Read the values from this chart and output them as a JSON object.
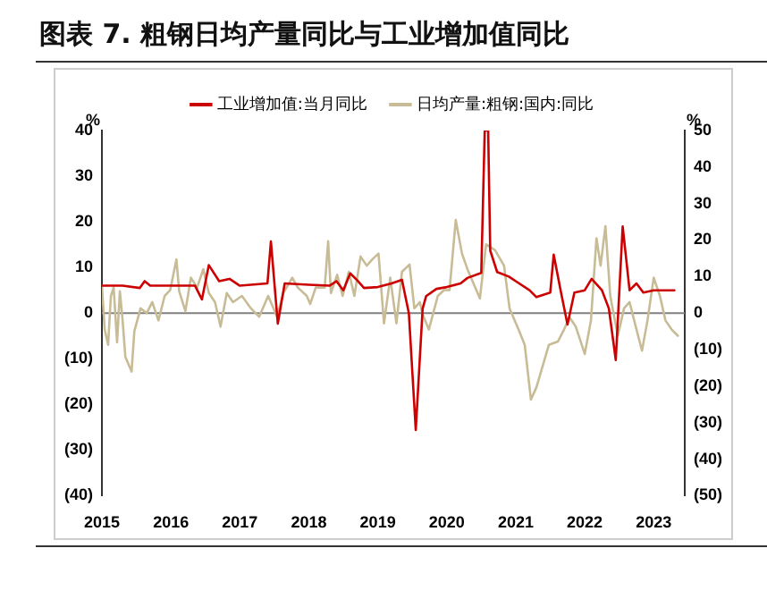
{
  "chart_data": {
    "type": "line",
    "title": "图表 7. 粗钢日均产量同比与工业增加值同比",
    "ylabel": "%",
    "y2label": "%",
    "xlim": [
      2015,
      2023.45
    ],
    "xticks": [
      2015,
      2016,
      2017,
      2018,
      2019,
      2020,
      2021,
      2022,
      2023
    ],
    "ylim": [
      -40,
      40
    ],
    "yticks": [
      {
        "value": -40,
        "label": "(40)"
      },
      {
        "value": -30,
        "label": "(30)"
      },
      {
        "value": -20,
        "label": "(20)"
      },
      {
        "value": -10,
        "label": "(10)"
      },
      0,
      10,
      20,
      30,
      40
    ],
    "y2lim": [
      -50,
      50
    ],
    "y2ticks": [
      {
        "value": -50,
        "label": "(50)"
      },
      {
        "value": -40,
        "label": "(40)"
      },
      {
        "value": -30,
        "label": "(30)"
      },
      {
        "value": -20,
        "label": "(20)"
      },
      {
        "value": -10,
        "label": "(10)"
      },
      0,
      10,
      20,
      30,
      40,
      50
    ],
    "grid": false,
    "legend": "top",
    "marker": "none",
    "line_style": "solid",
    "ref_lines": [
      {
        "axis": "y",
        "value": 0,
        "color": "#808080"
      }
    ],
    "series": [
      {
        "name": "工业增加值:当月同比",
        "color": "#cc0000",
        "axis": "y",
        "x": [
          2015.0,
          2015.3,
          2015.55,
          2015.62,
          2015.7,
          2016.0,
          2016.35,
          2016.45,
          2016.55,
          2016.7,
          2016.85,
          2017.0,
          2017.4,
          2017.45,
          2017.55,
          2017.65,
          2018.0,
          2018.3,
          2018.4,
          2018.5,
          2018.6,
          2018.7,
          2018.8,
          2019.0,
          2019.2,
          2019.35,
          2019.45,
          2019.55,
          2019.65,
          2019.7,
          2019.85,
          2020.0,
          2020.2,
          2020.3,
          2020.5,
          2020.55,
          2020.6,
          2020.63,
          2020.73,
          2020.9,
          2021.0,
          2021.2,
          2021.3,
          2021.5,
          2021.55,
          2021.65,
          2021.75,
          2021.85,
          2022.0,
          2022.1,
          2022.25,
          2022.35,
          2022.45,
          2022.55,
          2022.65,
          2022.75,
          2022.85,
          2023.0,
          2023.3
        ],
        "values": [
          6,
          6,
          5.5,
          7,
          6,
          6,
          6,
          3,
          10.5,
          7,
          7.5,
          6,
          6.5,
          15.7,
          -2.3,
          6.5,
          6.2,
          6,
          7,
          5,
          8.7,
          7.2,
          5.5,
          5.7,
          6.5,
          7.3,
          0,
          -25.6,
          1,
          3.7,
          5.3,
          5.7,
          6.5,
          7.7,
          8.8,
          40,
          40,
          13.7,
          9,
          8,
          7,
          5,
          3.5,
          4.5,
          12.8,
          5,
          -2.5,
          4.5,
          5,
          7.5,
          5,
          1,
          -10.3,
          19,
          5,
          6.5,
          4.5,
          5,
          5
        ]
      },
      {
        "name": "日均产量:粗钢:国内:同比",
        "color": "#c8bc96",
        "axis": "y2",
        "x": [
          2015.0,
          2015.04,
          2015.09,
          2015.13,
          2015.17,
          2015.22,
          2015.26,
          2015.3,
          2015.34,
          2015.43,
          2015.47,
          2015.56,
          2015.65,
          2015.73,
          2015.82,
          2015.91,
          2015.99,
          2016.08,
          2016.12,
          2016.21,
          2016.29,
          2016.38,
          2016.47,
          2016.55,
          2016.64,
          2016.72,
          2016.81,
          2016.9,
          2017.03,
          2017.16,
          2017.28,
          2017.41,
          2017.54,
          2017.63,
          2017.76,
          2017.84,
          2017.97,
          2018.02,
          2018.1,
          2018.23,
          2018.28,
          2018.32,
          2018.41,
          2018.49,
          2018.58,
          2018.66,
          2018.75,
          2018.84,
          2018.92,
          2019.01,
          2019.09,
          2019.18,
          2019.27,
          2019.35,
          2019.46,
          2019.53,
          2019.61,
          2019.65,
          2019.74,
          2019.87,
          2019.96,
          2020.04,
          2020.13,
          2020.22,
          2020.3,
          2020.39,
          2020.48,
          2020.57,
          2020.7,
          2020.83,
          2020.91,
          2021.04,
          2021.13,
          2021.22,
          2021.3,
          2021.39,
          2021.48,
          2021.61,
          2021.7,
          2021.78,
          2021.87,
          2022.0,
          2022.09,
          2022.17,
          2022.23,
          2022.3,
          2022.37,
          2022.48,
          2022.57,
          2022.65,
          2022.74,
          2022.83,
          2022.91,
          2023.0,
          2023.09,
          2023.17,
          2023.26,
          2023.35
        ],
        "values": [
          7.5,
          -4.5,
          -8.7,
          4.7,
          7,
          -8,
          6,
          -2,
          -12,
          -16,
          -5,
          1.3,
          0,
          3,
          -2,
          4.7,
          6.3,
          14.7,
          6,
          0.5,
          9.7,
          7,
          12,
          5.5,
          3,
          -3.7,
          5.5,
          3,
          4.7,
          1.3,
          -1,
          4.7,
          -1,
          5.5,
          9.7,
          7,
          4.7,
          2.5,
          7,
          7,
          19.7,
          5.5,
          10.5,
          4.7,
          11.3,
          4.7,
          15.5,
          13,
          14.7,
          16.3,
          -2.8,
          9.7,
          -2.8,
          11.3,
          13.3,
          1.3,
          3,
          -0.3,
          -4.5,
          4.7,
          6.3,
          6.3,
          25.5,
          16.3,
          12,
          8,
          4,
          18.8,
          17.2,
          13,
          1.3,
          -4.5,
          -8.7,
          -23.7,
          -20.3,
          -14.5,
          -8.7,
          -7.8,
          -4.5,
          -1.2,
          -3.7,
          -11.2,
          -2,
          20.5,
          13,
          23.8,
          4.7,
          -6.2,
          1.3,
          3,
          -3.7,
          -10.3,
          -2,
          9.7,
          4.7,
          -2,
          -4.5,
          -6.2
        ]
      }
    ]
  }
}
